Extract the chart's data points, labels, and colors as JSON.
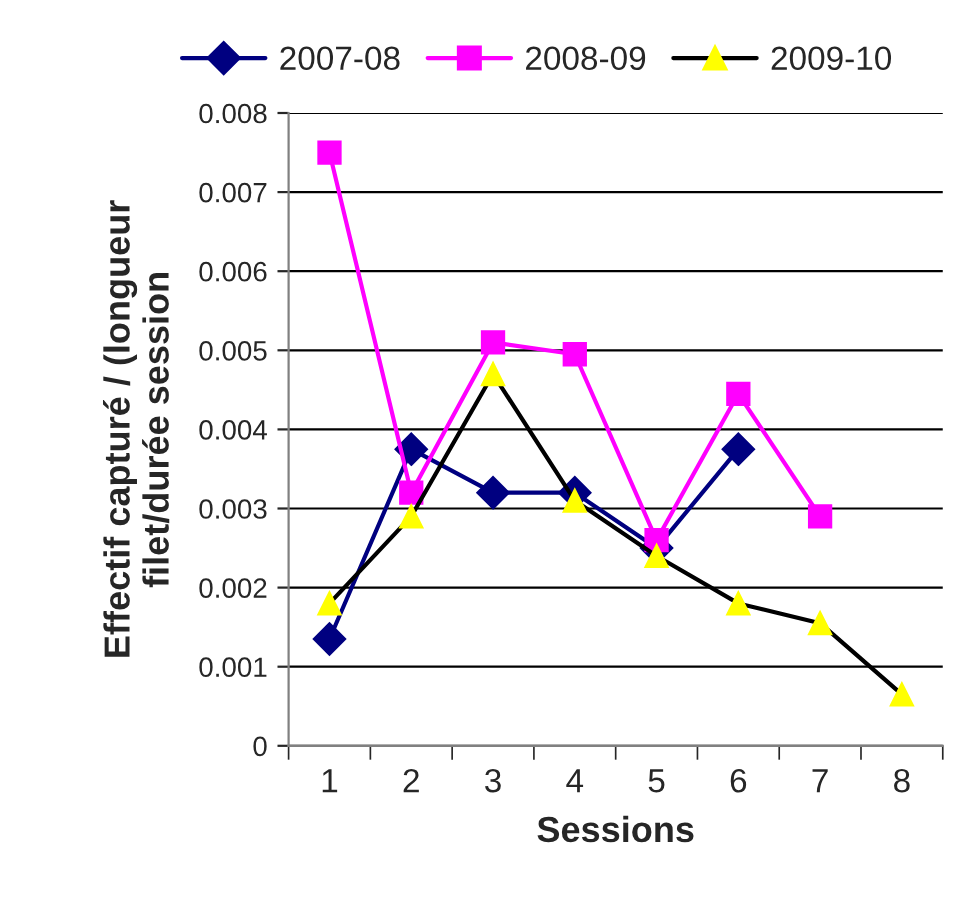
{
  "chart_data": {
    "type": "line",
    "xlabel": "Sessions",
    "ylabel": "Effectif capturé / (longueur\nfilet/durée session",
    "categories": [
      "1",
      "2",
      "3",
      "4",
      "5",
      "6",
      "7",
      "8"
    ],
    "series": [
      {
        "name": "2007-08",
        "color": "#000080",
        "marker": "diamond",
        "values": [
          0.00135,
          0.00375,
          0.0032,
          0.0032,
          0.0025,
          0.00375,
          null,
          null
        ]
      },
      {
        "name": "2008-09",
        "color": "#ff00ff",
        "marker": "square",
        "values": [
          0.0075,
          0.0032,
          0.0051,
          0.00495,
          0.0026,
          0.00445,
          0.0029,
          null
        ]
      },
      {
        "name": "2009-10",
        "color": "#ffff00",
        "marker": "triangle",
        "values": [
          0.0018,
          0.0029,
          0.0047,
          0.0031,
          0.0024,
          0.0018,
          0.00155,
          0.00065
        ]
      }
    ],
    "ylim": [
      0,
      0.008
    ],
    "yticks": [
      0,
      0.001,
      0.002,
      0.003,
      0.004,
      0.005,
      0.006,
      0.007,
      0.008
    ],
    "grid": "y",
    "legend": "top"
  }
}
